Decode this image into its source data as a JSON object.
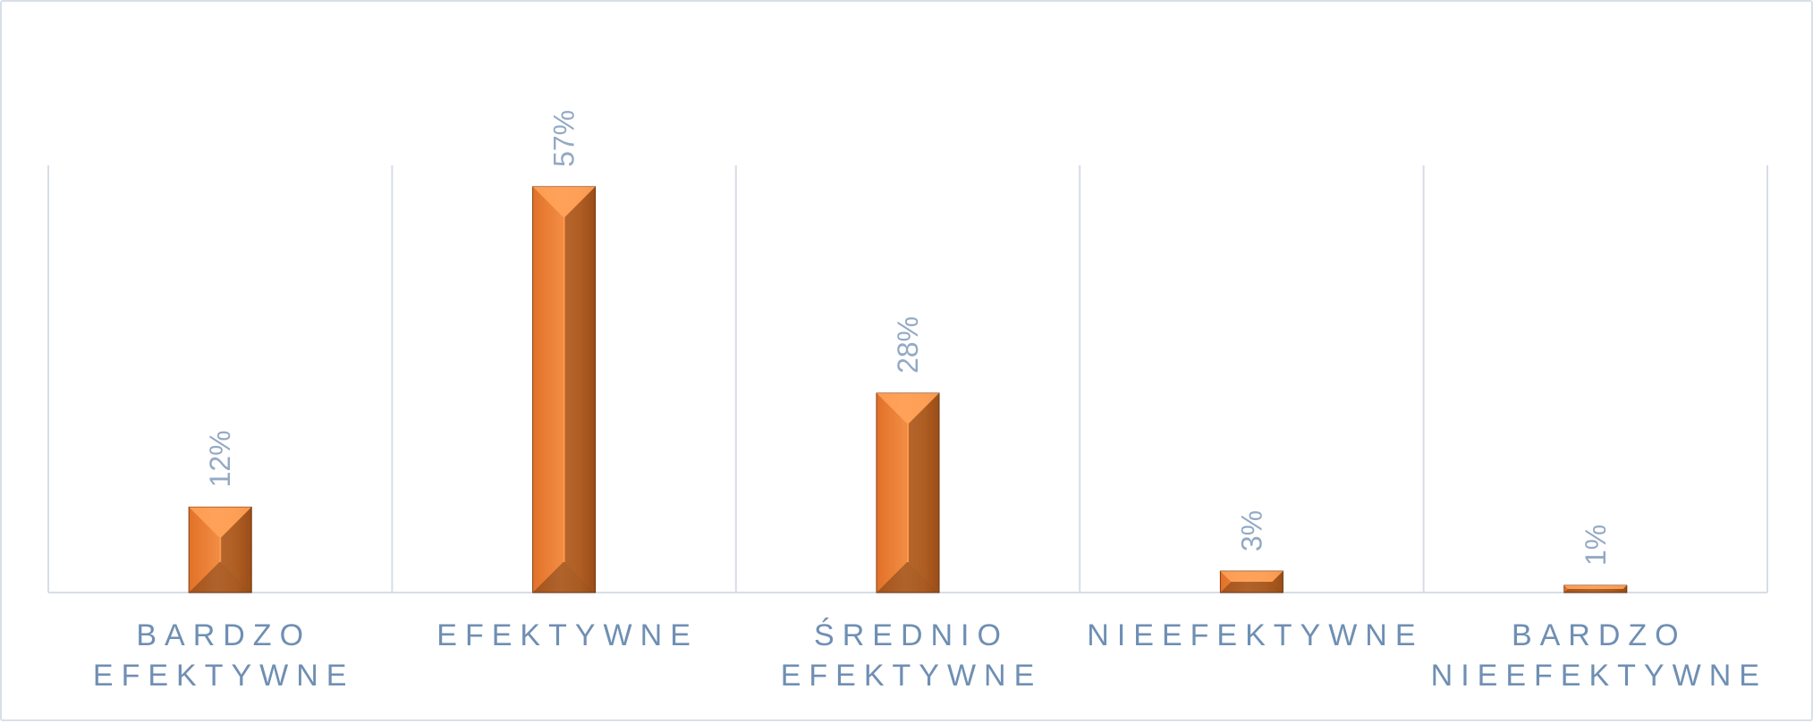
{
  "chart_data": {
    "type": "bar",
    "title": "",
    "xlabel": "",
    "ylabel": "",
    "categories": [
      [
        "BARDZO",
        "EFEKTYWNE"
      ],
      [
        "EFEKTYWNE"
      ],
      [
        "ŚREDNIO",
        "EFEKTYWNE"
      ],
      [
        "NIEEFEKTYWNE"
      ],
      [
        "BARDZO",
        "NIEEFEKTYWNE"
      ]
    ],
    "values": [
      12,
      57,
      28,
      3,
      1
    ],
    "value_labels": [
      "12%",
      "57%",
      "28%",
      "3%",
      "1%"
    ],
    "value_unit": "%",
    "ylim": [
      0,
      60
    ],
    "grid": "vertical category separators",
    "legend": "none",
    "colors": {
      "bar": "#f28a3c",
      "bar_light": "#ffa35a",
      "bar_dark": "#7a3d12",
      "grid": "#d6dde8",
      "category_text": "#6f8fb3",
      "value_text": "#93a9c4"
    }
  }
}
